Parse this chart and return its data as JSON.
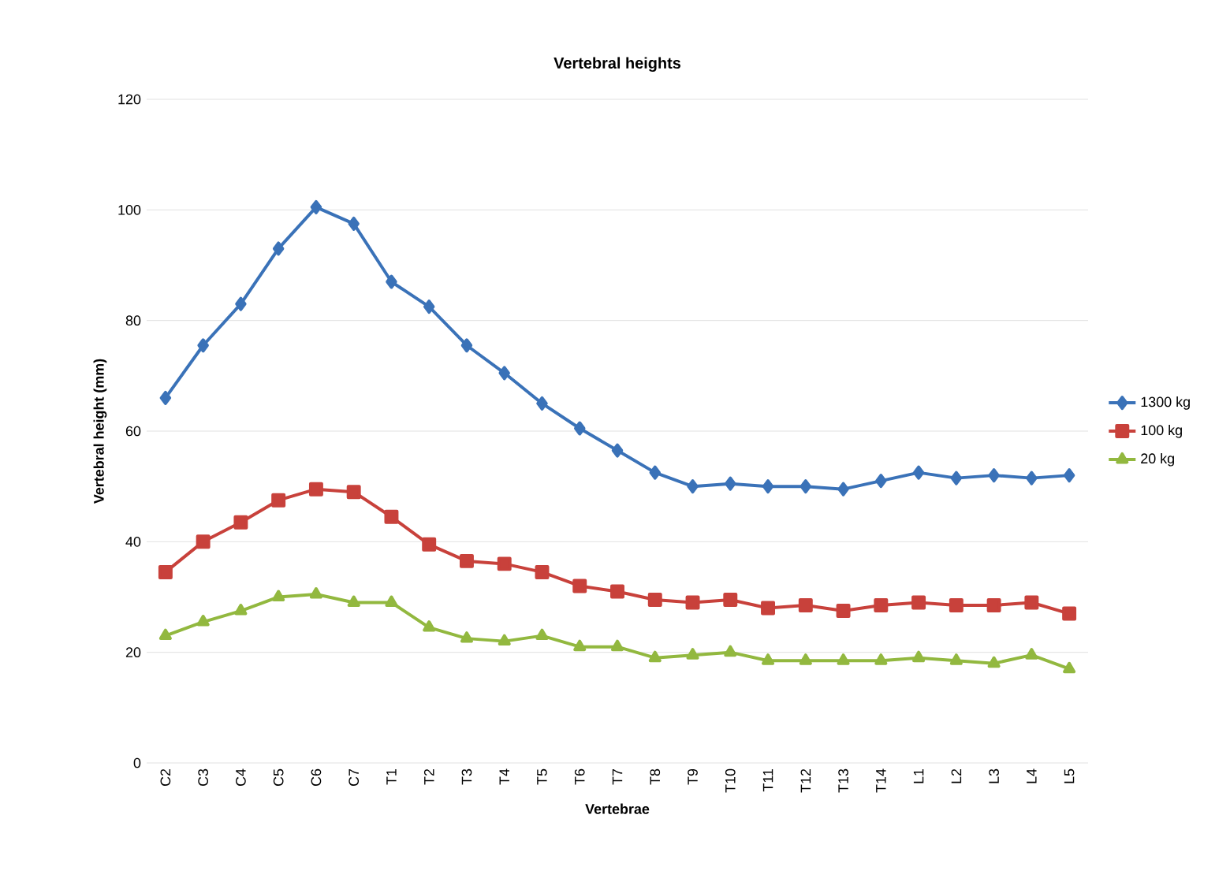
{
  "chart_data": {
    "type": "line",
    "title": "Vertebral heights",
    "xlabel": "Vertebrae",
    "ylabel": "Vertebral height (mm)",
    "categories": [
      "C2",
      "C3",
      "C4",
      "C5",
      "C6",
      "C7",
      "T1",
      "T2",
      "T3",
      "T4",
      "T5",
      "T6",
      "T7",
      "T8",
      "T9",
      "T10",
      "T11",
      "T12",
      "T13",
      "T14",
      "L1",
      "L2",
      "L3",
      "L4",
      "L5"
    ],
    "ylim": [
      0,
      120
    ],
    "yticks": [
      0,
      20,
      40,
      60,
      80,
      100,
      120
    ],
    "grid": "y",
    "legend": "right",
    "line_style": "solid",
    "series": [
      {
        "name": "1300 kg",
        "color": "#3a72b8",
        "marker": "diamond",
        "values": [
          66,
          75.5,
          83,
          93,
          100.5,
          97.5,
          87,
          82.5,
          75.5,
          70.5,
          65,
          60.5,
          56.5,
          52.5,
          50,
          50.5,
          50,
          50,
          49.5,
          51,
          52.5,
          51.5,
          52,
          51.5,
          52
        ]
      },
      {
        "name": "100 kg",
        "color": "#c8413b",
        "marker": "square",
        "values": [
          34.5,
          40,
          43.5,
          47.5,
          49.5,
          49,
          44.5,
          39.5,
          36.5,
          36,
          34.5,
          32,
          31,
          29.5,
          29,
          29.5,
          28,
          28.5,
          27.5,
          28.5,
          29,
          28.5,
          28.5,
          29,
          27
        ]
      },
      {
        "name": "20 kg",
        "color": "#92b83f",
        "marker": "triangle",
        "values": [
          23,
          25.5,
          27.5,
          30,
          30.5,
          29,
          29,
          24.5,
          22.5,
          22,
          23,
          21,
          21,
          19,
          19.5,
          20,
          18.5,
          18.5,
          18.5,
          18.5,
          19,
          18.5,
          18,
          19.5,
          17
        ]
      }
    ]
  }
}
